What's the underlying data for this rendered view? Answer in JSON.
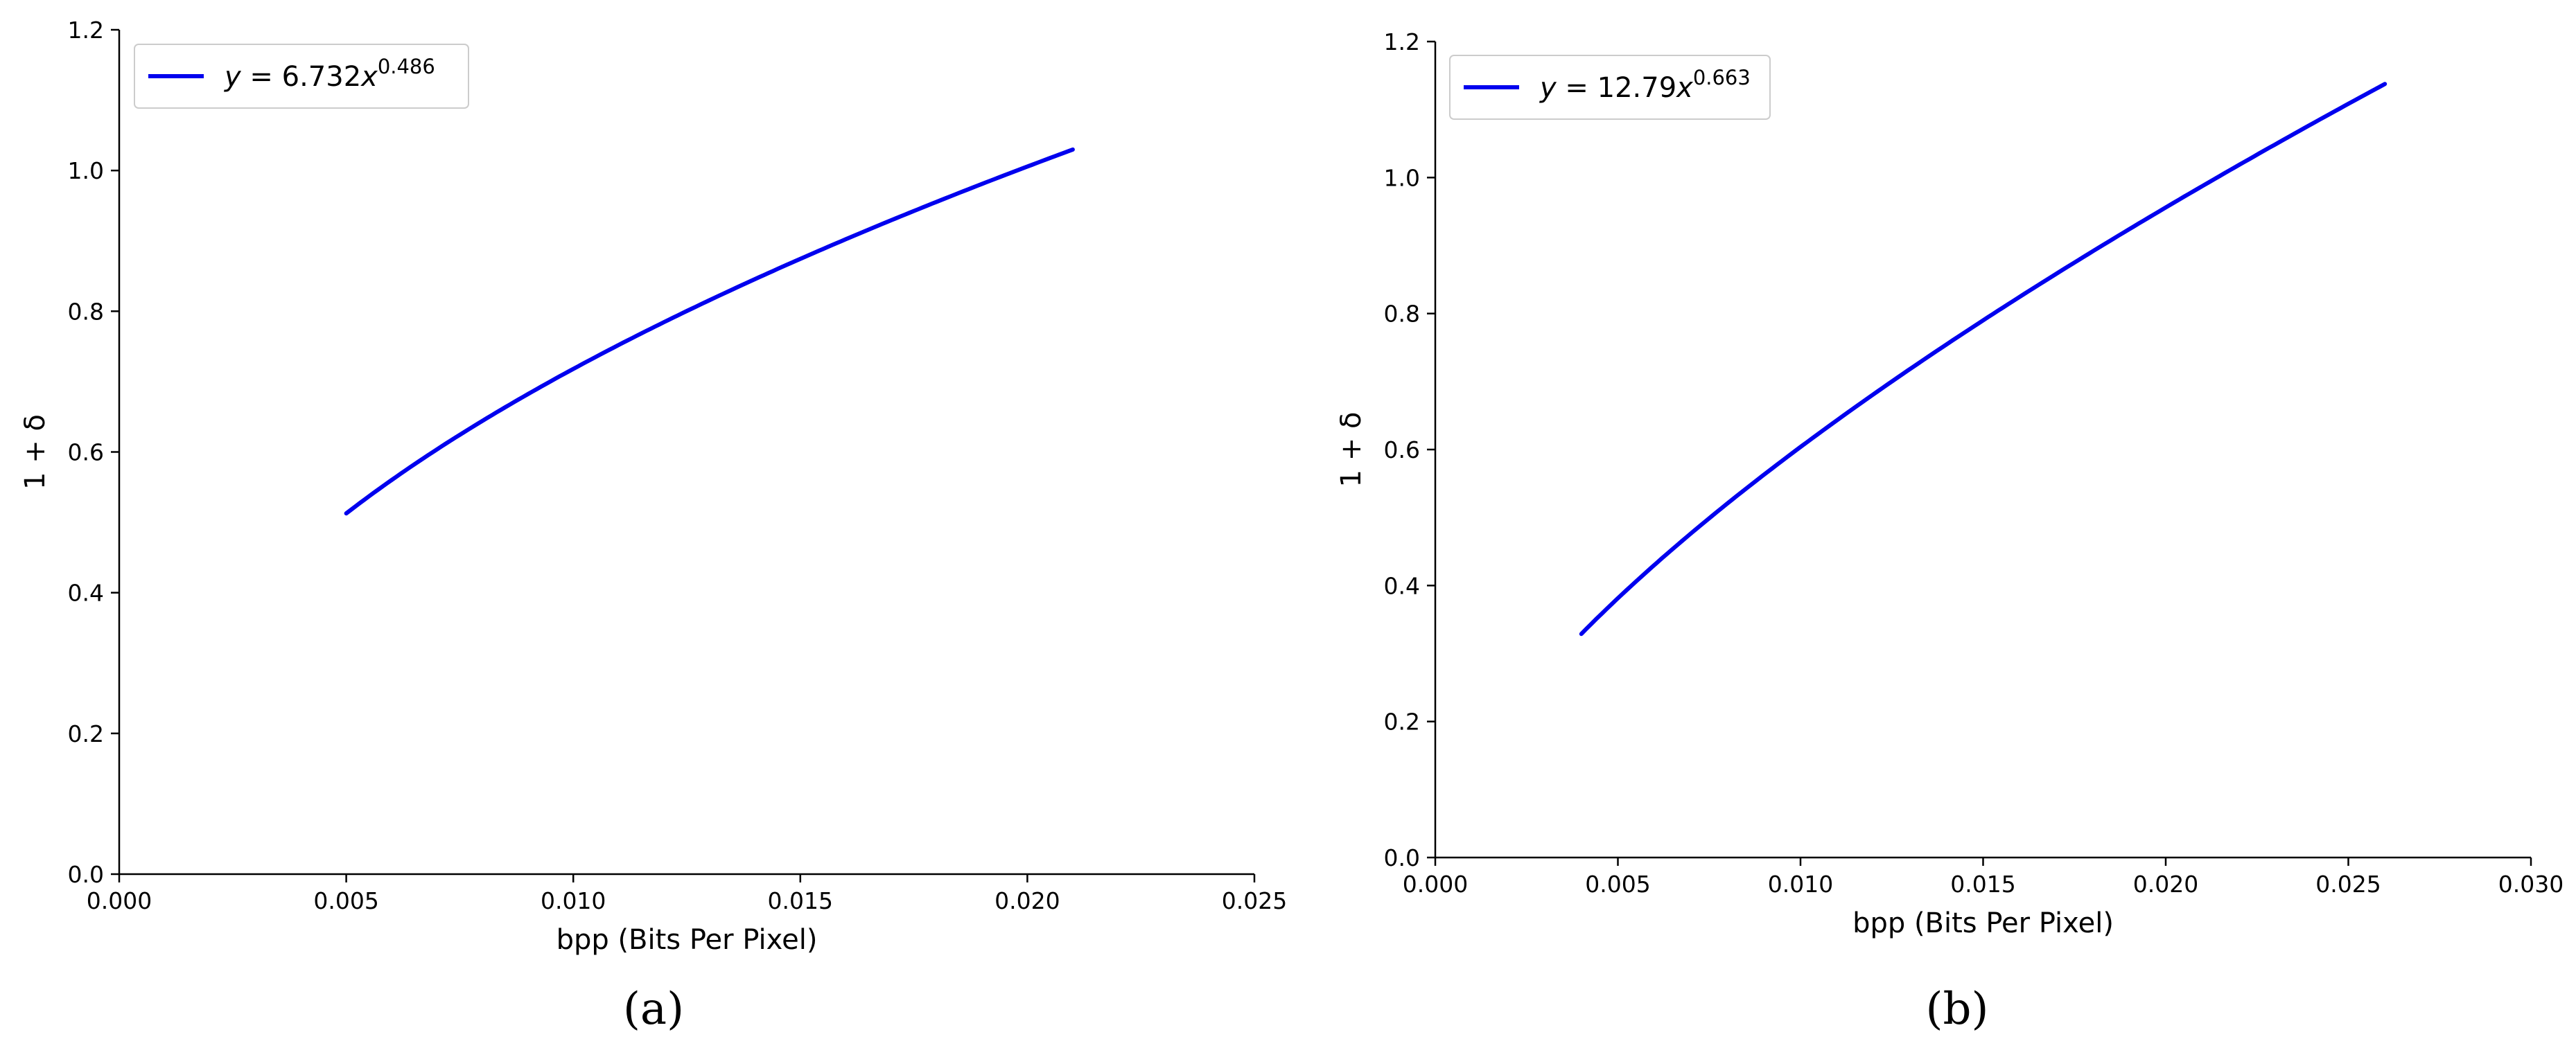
{
  "colors": {
    "series": "#0000ee"
  },
  "chart_data": [
    {
      "type": "line",
      "panel_label": "(a)",
      "xlabel": "bpp (Bits Per Pixel)",
      "ylabel": "1 + δ",
      "xlim": [
        0.0,
        0.025
      ],
      "ylim": [
        0.0,
        1.2
      ],
      "xticks": [
        0.0,
        0.005,
        0.01,
        0.015,
        0.02,
        0.025
      ],
      "xtick_labels": [
        "0.000",
        "0.005",
        "0.010",
        "0.015",
        "0.020",
        "0.025"
      ],
      "yticks": [
        0.0,
        0.2,
        0.4,
        0.6,
        0.8,
        1.0,
        1.2
      ],
      "ytick_labels": [
        "0.0",
        "0.2",
        "0.4",
        "0.6",
        "0.8",
        "1.0",
        "1.2"
      ],
      "legend_position": "top-left",
      "grid": false,
      "series": [
        {
          "name": "y = 6.732x^0.486",
          "legend": {
            "lhs": "y",
            "coef": "6.732",
            "var": "x",
            "exp": "0.486"
          },
          "coef": 6.732,
          "exponent": 0.486,
          "x_range": [
            0.005,
            0.021
          ],
          "x": [
            0.005,
            0.007,
            0.009,
            0.011,
            0.013,
            0.015,
            0.017,
            0.019,
            0.021
          ],
          "y": [
            0.515,
            0.607,
            0.687,
            0.758,
            0.822,
            0.881,
            0.936,
            0.988,
            1.037
          ]
        }
      ]
    },
    {
      "type": "line",
      "panel_label": "(b)",
      "xlabel": "bpp (Bits Per Pixel)",
      "ylabel": "1 + δ",
      "xlim": [
        0.0,
        0.03
      ],
      "ylim": [
        0.0,
        1.2
      ],
      "xticks": [
        0.0,
        0.005,
        0.01,
        0.015,
        0.02,
        0.025,
        0.03
      ],
      "xtick_labels": [
        "0.000",
        "0.005",
        "0.010",
        "0.015",
        "0.020",
        "0.025",
        "0.030"
      ],
      "yticks": [
        0.0,
        0.2,
        0.4,
        0.6,
        0.8,
        1.0,
        1.2
      ],
      "ytick_labels": [
        "0.0",
        "0.2",
        "0.4",
        "0.6",
        "0.8",
        "1.0",
        "1.2"
      ],
      "legend_position": "top-left",
      "grid": false,
      "series": [
        {
          "name": "y = 12.79x^0.663",
          "legend": {
            "lhs": "y",
            "coef": "12.79",
            "var": "x",
            "exp": "0.663"
          },
          "coef": 12.79,
          "exponent": 0.663,
          "x_range": [
            0.004,
            0.026
          ],
          "x": [
            0.004,
            0.007,
            0.01,
            0.013,
            0.016,
            0.019,
            0.022,
            0.026
          ],
          "y": [
            0.33,
            0.479,
            0.605,
            0.72,
            0.826,
            0.925,
            1.019,
            1.138
          ]
        }
      ]
    }
  ]
}
